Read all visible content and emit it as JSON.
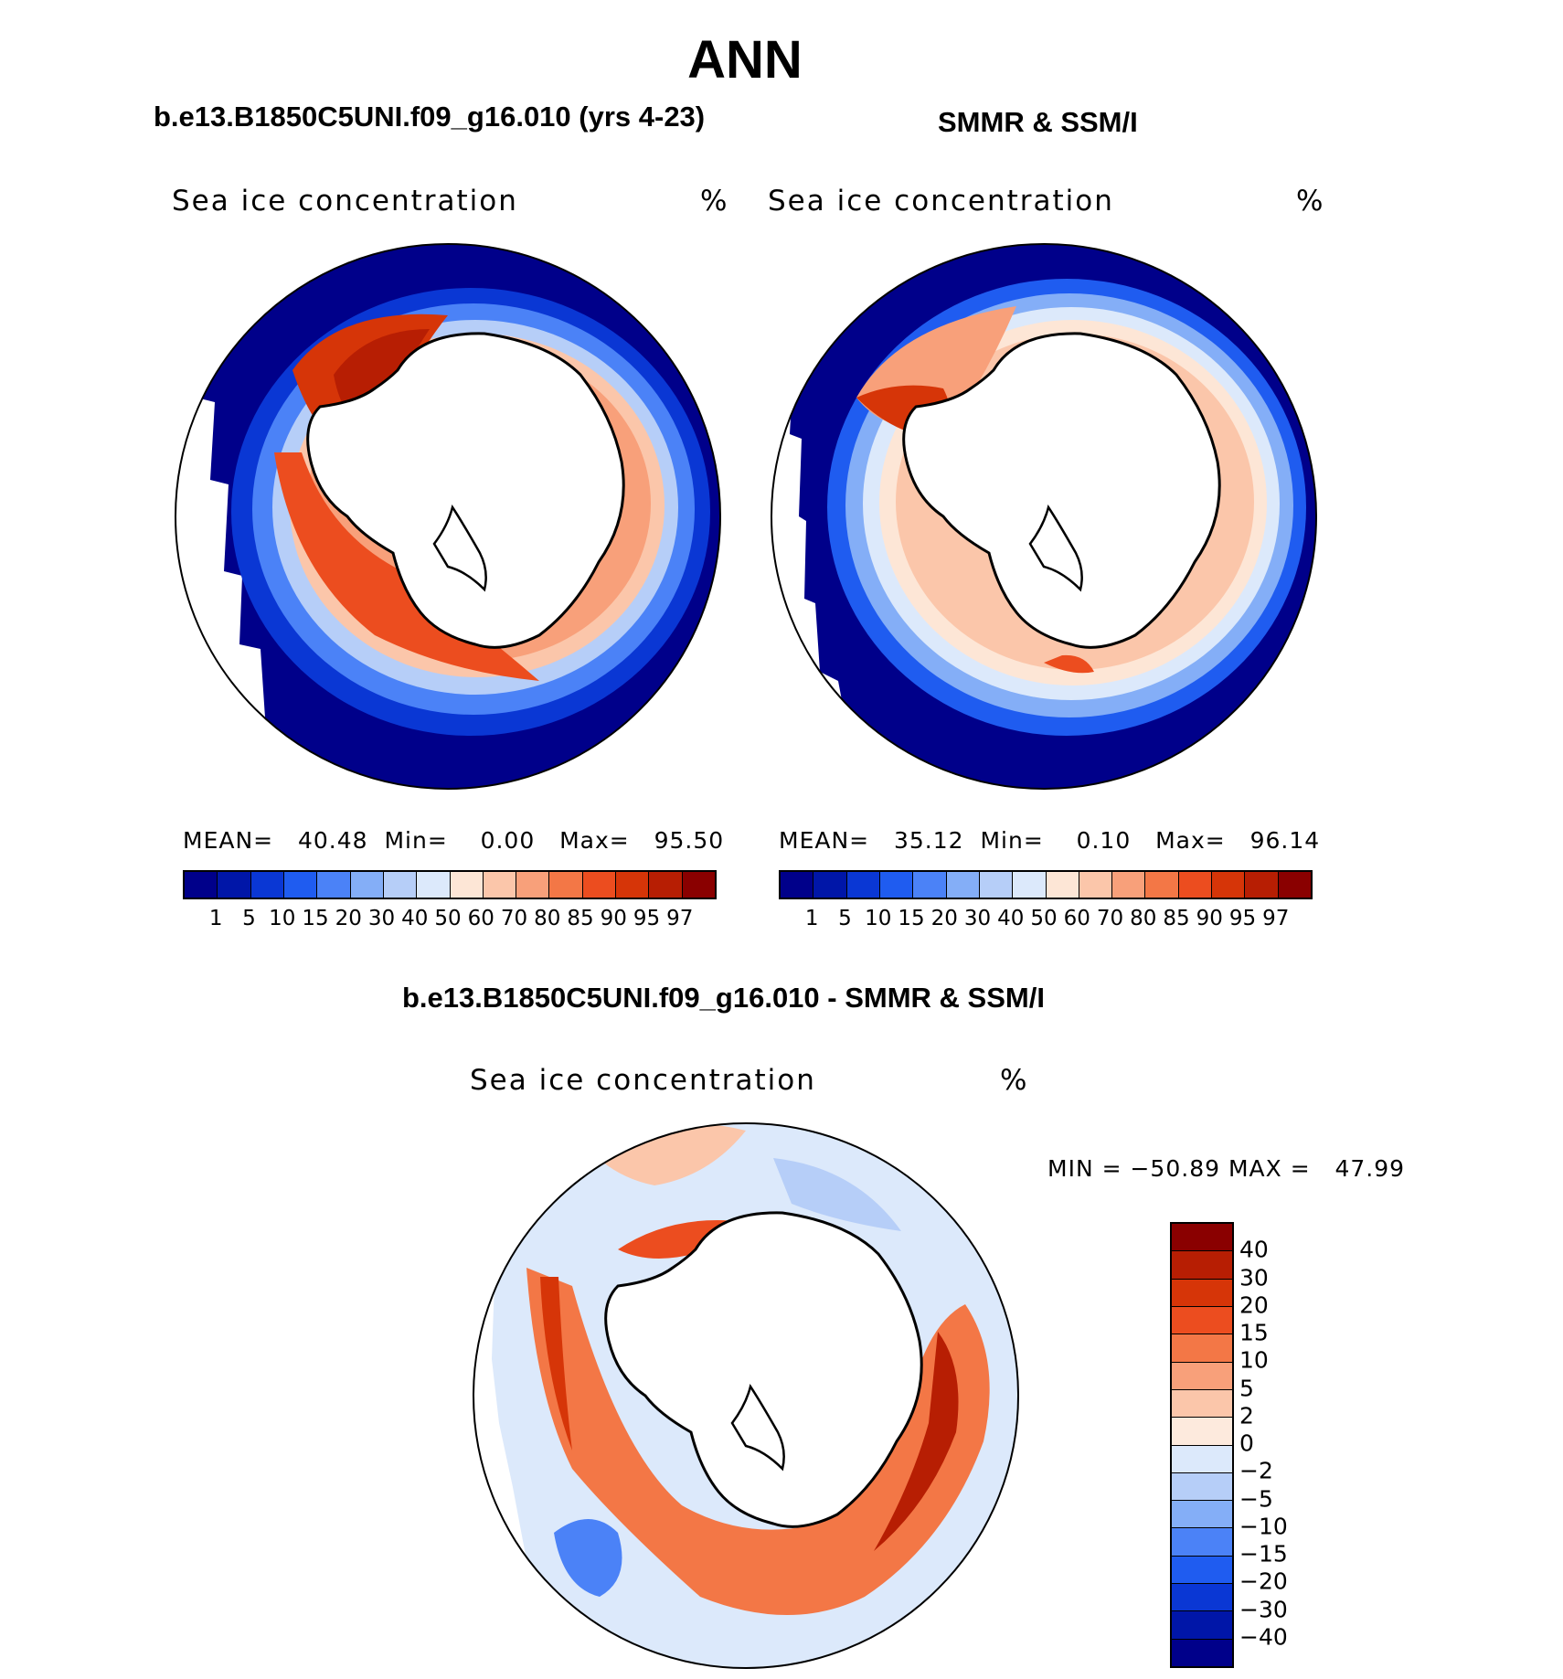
{
  "title": "ANN",
  "panels": [
    {
      "subtitle": "b.e13.B1850C5UNI.f09_g16.010 (yrs 4-23)",
      "field_label": "Sea ice concentration",
      "unit": "%",
      "stats": {
        "mean_label": "MEAN=",
        "mean": "40.48",
        "min_label": "Min=",
        "min": "0.00",
        "max_label": "Max=",
        "max": "95.50"
      }
    },
    {
      "subtitle": "SMMR & SSM/I",
      "field_label": "Sea ice concentration",
      "unit": "%",
      "stats": {
        "mean_label": "MEAN=",
        "mean": "35.12",
        "min_label": "Min=",
        "min": "0.10",
        "max_label": "Max=",
        "max": "96.14"
      }
    }
  ],
  "concentration_colorbar": {
    "ticks": [
      "1",
      "5",
      "10",
      "15",
      "20",
      "30",
      "40",
      "50",
      "60",
      "70",
      "80",
      "85",
      "90",
      "95",
      "97"
    ],
    "colors": [
      "#00008a",
      "#0016a8",
      "#0a37d4",
      "#1f5cf0",
      "#4b82f7",
      "#84aef7",
      "#b6cef8",
      "#dce9fb",
      "#fde6d6",
      "#fbc6aa",
      "#f8a07a",
      "#f37746",
      "#ec4d1f",
      "#d63508",
      "#b71e03",
      "#8a0000"
    ]
  },
  "difference_panel": {
    "subtitle": "b.e13.B1850C5UNI.f09_g16.010 - SMMR & SSM/I",
    "field_label": "Sea ice concentration",
    "unit": "%",
    "stats": "MIN = −50.89 MAX =   47.99",
    "colorbar_ticks": [
      "40",
      "30",
      "20",
      "15",
      "10",
      "5",
      "2",
      "0",
      "−2",
      "−5",
      "−10",
      "−15",
      "−20",
      "−30",
      "−40"
    ],
    "colorbar_colors": [
      "#8a0000",
      "#b71e03",
      "#d63508",
      "#ec4d1f",
      "#f37746",
      "#f8a07a",
      "#fbc6aa",
      "#fdeadd",
      "#dce9fb",
      "#b6cef8",
      "#84aef7",
      "#4b82f7",
      "#1f5cf0",
      "#0a37d4",
      "#0016a8",
      "#00008a"
    ]
  }
}
